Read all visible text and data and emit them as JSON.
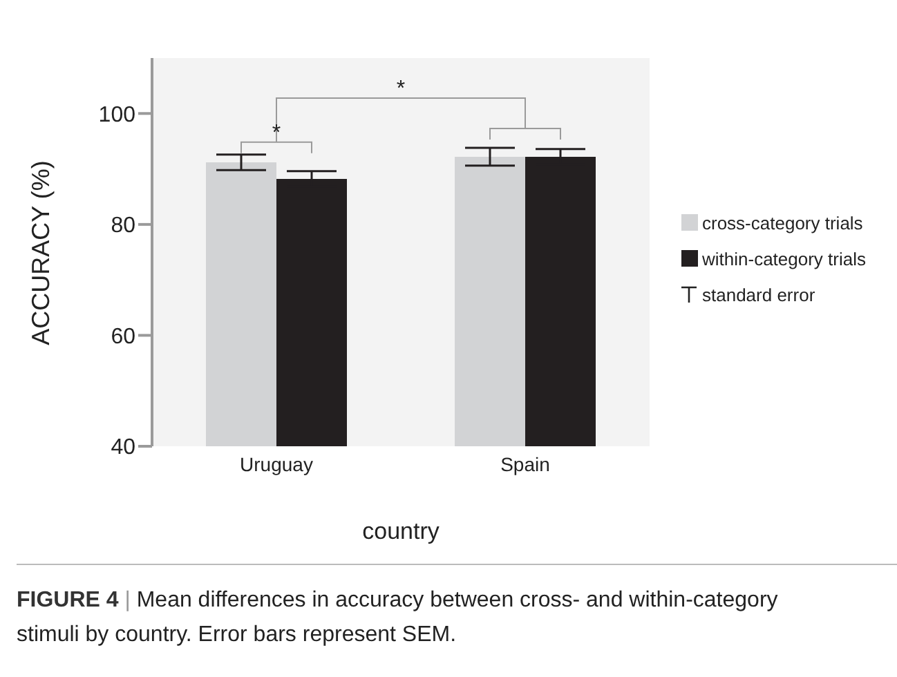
{
  "chart_data": {
    "type": "bar",
    "xlabel": "country",
    "ylabel": "ACCURACY (%)",
    "categories": [
      "Uruguay",
      "Spain"
    ],
    "series": [
      {
        "name": "cross-category trials",
        "color": "#d2d3d5",
        "values": [
          91.2,
          92.2
        ],
        "errors": [
          1.4,
          1.6
        ]
      },
      {
        "name": "within-category trials",
        "color": "#231f20",
        "values": [
          88.2,
          92.2
        ],
        "errors": [
          1.4,
          1.4
        ]
      }
    ],
    "ylim": [
      40,
      110
    ],
    "yticks": [
      40,
      60,
      80,
      100
    ],
    "grid": false,
    "legend": "right",
    "annotations": [
      "*",
      "*",
      "standard error",
      "FIGURE 4 | Mean differences in accuracy between cross- and within-category stimuli by country. Error bars represent SEM."
    ]
  }
}
